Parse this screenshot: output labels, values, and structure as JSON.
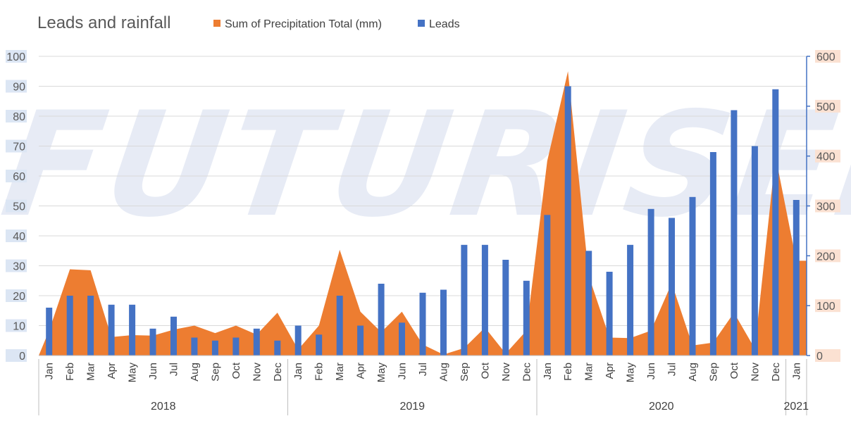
{
  "chart_data": {
    "type": "bar",
    "title": "Leads and rainfall",
    "watermark": "FUTURISED",
    "months": [
      "Jan",
      "Feb",
      "Mar",
      "Apr",
      "May",
      "Jun",
      "Jul",
      "Aug",
      "Sep",
      "Oct",
      "Nov",
      "Dec",
      "Jan",
      "Feb",
      "Mar",
      "Apr",
      "May",
      "Jun",
      "Jul",
      "Aug",
      "Sep",
      "Oct",
      "Nov",
      "Dec",
      "Jan",
      "Feb",
      "Mar",
      "Apr",
      "May",
      "Jun",
      "Jul",
      "Aug",
      "Sep",
      "Oct",
      "Nov",
      "Dec",
      "Jan"
    ],
    "years": [
      {
        "label": "2018",
        "start": 0,
        "end": 11
      },
      {
        "label": "2019",
        "start": 12,
        "end": 23
      },
      {
        "label": "2020",
        "start": 24,
        "end": 35
      },
      {
        "label": "2021",
        "start": 36,
        "end": 36
      }
    ],
    "series": [
      {
        "name": "Sum of Precipitation Total (mm)",
        "type": "area",
        "axis": "secondary",
        "color": "#ED7D31",
        "values": [
          50,
          173,
          171,
          37,
          41,
          40,
          52,
          60,
          45,
          60,
          42,
          86,
          12,
          60,
          212,
          88,
          47,
          88,
          22,
          2,
          15,
          56,
          4,
          50,
          390,
          570,
          160,
          36,
          35,
          50,
          145,
          20,
          26,
          86,
          14,
          400,
          190
        ]
      },
      {
        "name": "Leads",
        "type": "bar",
        "axis": "primary",
        "color": "#4472C4",
        "values": [
          16,
          20,
          20,
          17,
          17,
          9,
          13,
          6,
          5,
          6,
          9,
          5,
          10,
          7,
          20,
          10,
          24,
          11,
          21,
          22,
          37,
          37,
          32,
          25,
          47,
          90,
          35,
          28,
          37,
          49,
          46,
          53,
          68,
          82,
          70,
          89,
          52
        ]
      }
    ],
    "y_primary": {
      "min": 0,
      "max": 100,
      "step": 10,
      "ticks": [
        "0",
        "10",
        "20",
        "30",
        "40",
        "50",
        "60",
        "70",
        "80",
        "90",
        "100"
      ]
    },
    "y_secondary": {
      "min": 0,
      "max": 600,
      "step": 100,
      "ticks": [
        "0",
        "100",
        "200",
        "300",
        "400",
        "500",
        "600"
      ]
    },
    "grid": true,
    "legend_position": "top"
  }
}
